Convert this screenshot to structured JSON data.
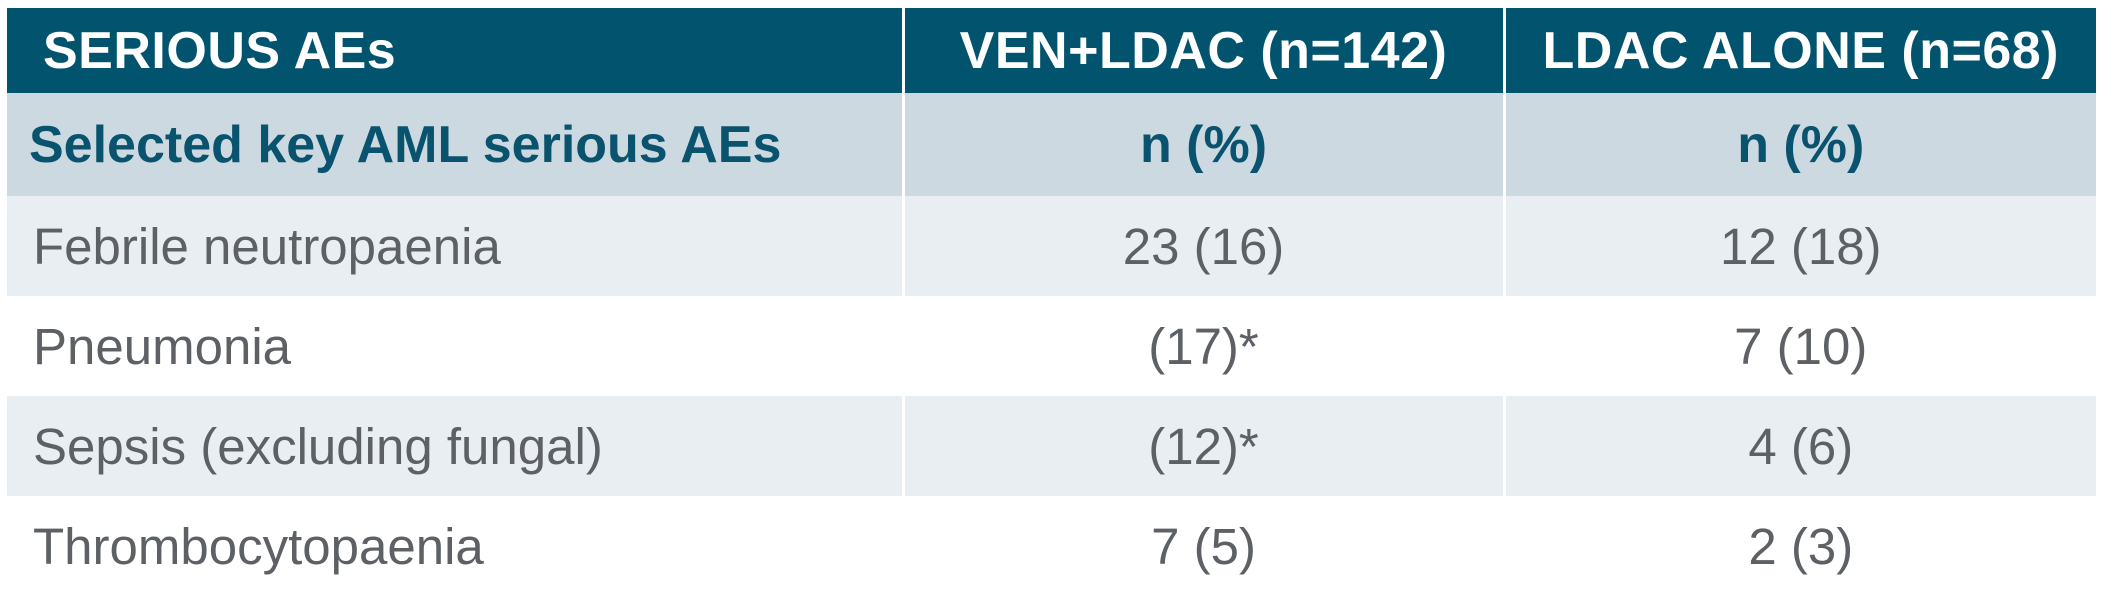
{
  "colors": {
    "header_bg": "#02546e",
    "header_text": "#ffffff",
    "subheader_bg": "#ccd9e0",
    "subheader_text": "#09536f",
    "row_alt_bg": "#e9eef2",
    "row_bg": "#ffffff",
    "data_text": "#5d6165",
    "column_divider": "#ffffff"
  },
  "chart_data": {
    "type": "table",
    "title": "SERIOUS AEs",
    "columns": [
      "SERIOUS AEs",
      "VEN+LDAC (n=142)",
      "LDAC ALONE (n=68)"
    ],
    "subheader_row": [
      "Selected key AML serious AEs",
      "n (%)",
      "n (%)"
    ],
    "rows": [
      [
        "Febrile neutropaenia",
        "23 (16)",
        "12 (18)"
      ],
      [
        "Pneumonia",
        "(17)*",
        "7 (10)"
      ],
      [
        "Sepsis (excluding fungal)",
        "(12)*",
        "4 (6)"
      ],
      [
        "Thrombocytopaenia",
        "7 (5)",
        "2 (3)"
      ]
    ]
  }
}
